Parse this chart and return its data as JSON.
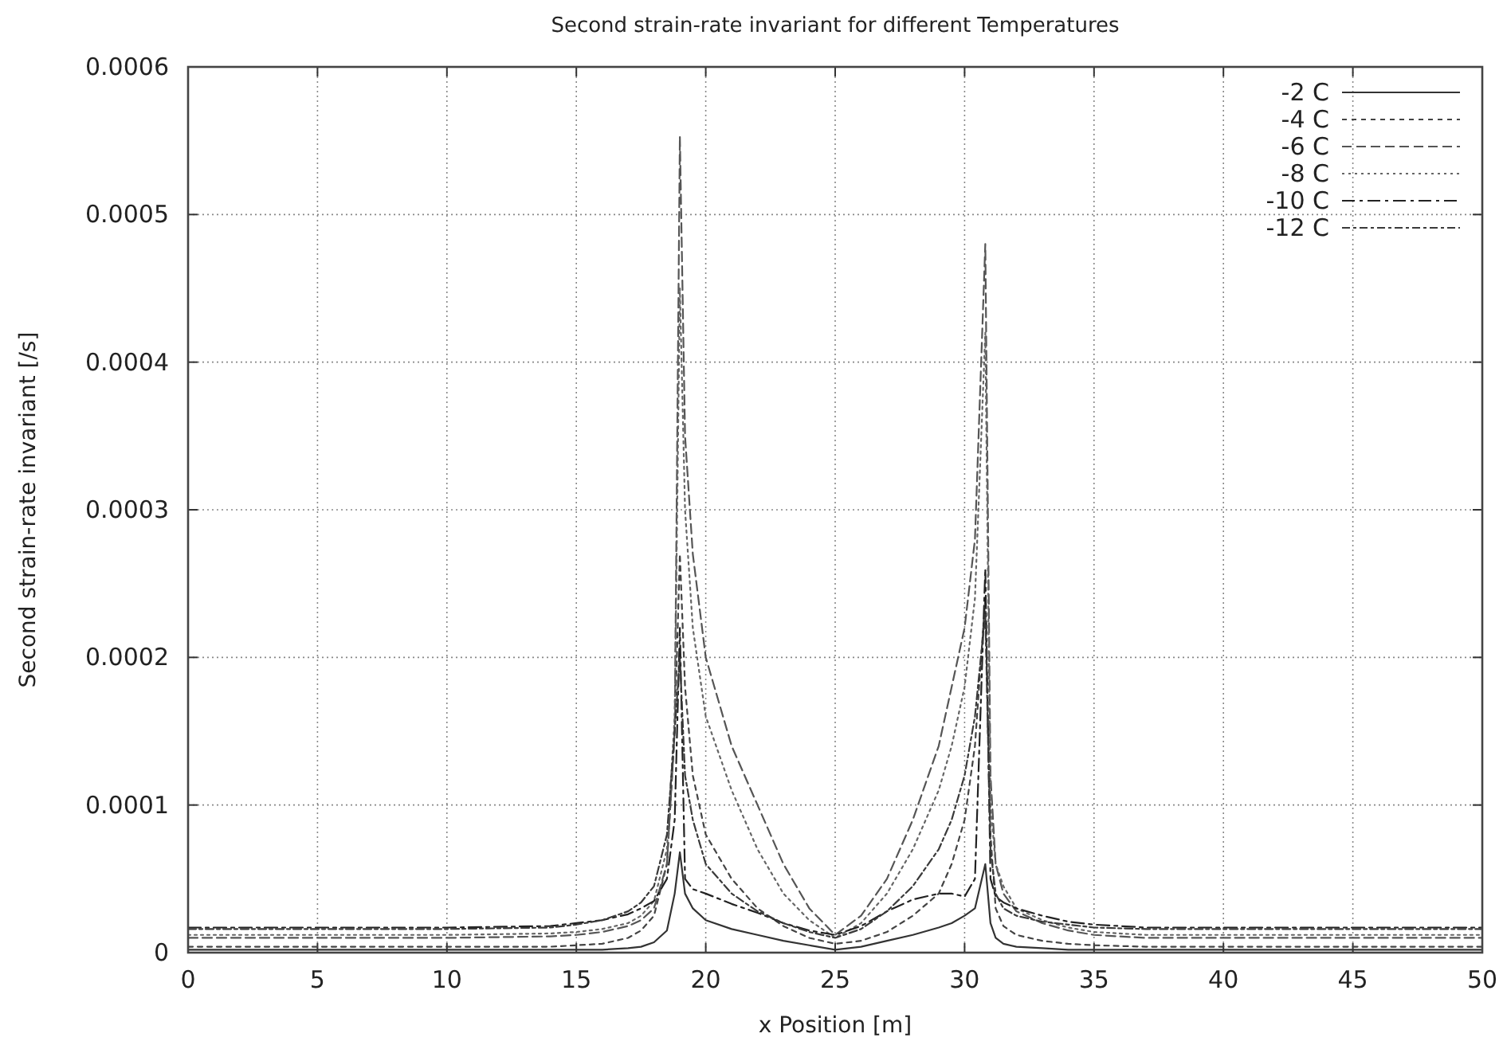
{
  "chart_data": {
    "type": "line",
    "title": "Second strain-rate invariant for different Temperatures",
    "xlabel": "x Position [m]",
    "ylabel": "Second strain-rate invariant [/s]",
    "x": [
      0,
      5,
      10,
      14,
      15,
      16,
      17,
      17.5,
      18,
      18.5,
      18.8,
      19,
      19.2,
      19.5,
      20,
      21,
      22,
      23,
      24,
      25,
      26,
      27,
      28,
      29,
      29.5,
      30,
      30.4,
      30.8,
      31,
      31.2,
      31.5,
      32,
      33,
      34,
      35,
      37,
      40,
      45,
      50
    ],
    "xlim": [
      0,
      50
    ],
    "xticks": [
      0,
      5,
      10,
      15,
      20,
      25,
      30,
      35,
      40,
      45,
      50
    ],
    "ylim": [
      0,
      0.0006
    ],
    "yticks": [
      0,
      0.0001,
      0.0002,
      0.0003,
      0.0004,
      0.0005,
      0.0006
    ],
    "grid": true,
    "legend": "top right",
    "marker": "none",
    "series": [
      {
        "name": "-2 C",
        "color": "#333333",
        "line_style": "solid",
        "values": [
          2e-06,
          2e-06,
          2e-06,
          2e-06,
          2e-06,
          2e-06,
          3e-06,
          4e-06,
          7e-06,
          1.5e-05,
          4e-05,
          6.8e-05,
          4e-05,
          3e-05,
          2.2e-05,
          1.6e-05,
          1.2e-05,
          8e-06,
          5e-06,
          2e-06,
          4e-06,
          8e-06,
          1.2e-05,
          1.7e-05,
          2e-05,
          2.5e-05,
          3e-05,
          6e-05,
          2e-05,
          1e-05,
          6e-06,
          4e-06,
          3e-06,
          2e-06,
          2e-06,
          2e-06,
          2e-06,
          2e-06,
          2e-06
        ]
      },
      {
        "name": "-4 C",
        "color": "#444444",
        "line_style": "dashed",
        "values": [
          4e-06,
          4e-06,
          4e-06,
          4e-06,
          5e-06,
          6e-06,
          1e-05,
          1.5e-05,
          2.5e-05,
          6e-05,
          0.00015,
          0.00027,
          0.00018,
          0.00012,
          8e-05,
          5e-05,
          3e-05,
          1.8e-05,
          1e-05,
          6e-06,
          8e-06,
          1.4e-05,
          2.5e-05,
          4e-05,
          6e-05,
          9e-05,
          0.00014,
          0.00024,
          8e-05,
          3e-05,
          1.8e-05,
          1.2e-05,
          8e-06,
          6e-06,
          5e-06,
          4e-06,
          4e-06,
          4e-06,
          4e-06
        ]
      },
      {
        "name": "-6 C",
        "color": "#555555",
        "line_style": "dashed",
        "values": [
          1e-05,
          1e-05,
          1e-05,
          1.1e-05,
          1.2e-05,
          1.4e-05,
          1.8e-05,
          2.2e-05,
          3e-05,
          6e-05,
          0.00015,
          0.000553,
          0.00035,
          0.00027,
          0.0002,
          0.00014,
          0.0001,
          6e-05,
          3e-05,
          1.2e-05,
          2.5e-05,
          5e-05,
          9e-05,
          0.00014,
          0.00018,
          0.00022,
          0.00028,
          0.00048,
          0.00012,
          6e-05,
          4e-05,
          2.8e-05,
          2e-05,
          1.5e-05,
          1.2e-05,
          1e-05,
          1e-05,
          1e-05,
          1e-05
        ]
      },
      {
        "name": "-8 C",
        "color": "#666666",
        "line_style": "dotted",
        "values": [
          1.2e-05,
          1.2e-05,
          1.2e-05,
          1.3e-05,
          1.4e-05,
          1.6e-05,
          2e-05,
          2.5e-05,
          3.5e-05,
          7e-05,
          0.00016,
          0.00045,
          0.0003,
          0.00022,
          0.00016,
          0.00011,
          7e-05,
          4e-05,
          2.2e-05,
          1e-05,
          2e-05,
          4e-05,
          7e-05,
          0.00011,
          0.00014,
          0.00018,
          0.00024,
          0.00042,
          0.0001,
          6e-05,
          4.5e-05,
          3e-05,
          2.2e-05,
          1.7e-05,
          1.4e-05,
          1.2e-05,
          1.2e-05,
          1.2e-05,
          1.2e-05
        ]
      },
      {
        "name": "-10 C",
        "color": "#222222",
        "line_style": "dashed",
        "values": [
          1.7e-05,
          1.7e-05,
          1.7e-05,
          1.8e-05,
          2e-05,
          2.2e-05,
          2.6e-05,
          3e-05,
          3.5e-05,
          5e-05,
          9e-05,
          0.00022,
          5e-05,
          4.3e-05,
          4e-05,
          3.3e-05,
          2.7e-05,
          2e-05,
          1.5e-05,
          1.2e-05,
          1.8e-05,
          2.8e-05,
          3.6e-05,
          4e-05,
          4e-05,
          3.8e-05,
          5e-05,
          0.00026,
          5e-05,
          3.8e-05,
          3.4e-05,
          3e-05,
          2.5e-05,
          2.1e-05,
          1.9e-05,
          1.7e-05,
          1.7e-05,
          1.7e-05,
          1.7e-05
        ]
      },
      {
        "name": "-12 C",
        "color": "#3a3a3a",
        "line_style": "dashed",
        "values": [
          1.6e-05,
          1.6e-05,
          1.6e-05,
          1.7e-05,
          1.9e-05,
          2.2e-05,
          2.8e-05,
          3.4e-05,
          4.5e-05,
          8e-05,
          0.00015,
          0.0002,
          0.00012,
          9e-05,
          6e-05,
          4e-05,
          2.8e-05,
          2e-05,
          1.4e-05,
          1e-05,
          1.6e-05,
          2.8e-05,
          4.5e-05,
          7e-05,
          9e-05,
          0.00012,
          0.00016,
          0.00023,
          7e-05,
          4e-05,
          3e-05,
          2.5e-05,
          2.1e-05,
          1.9e-05,
          1.7e-05,
          1.6e-05,
          1.6e-05,
          1.6e-05,
          1.6e-05
        ]
      }
    ]
  }
}
